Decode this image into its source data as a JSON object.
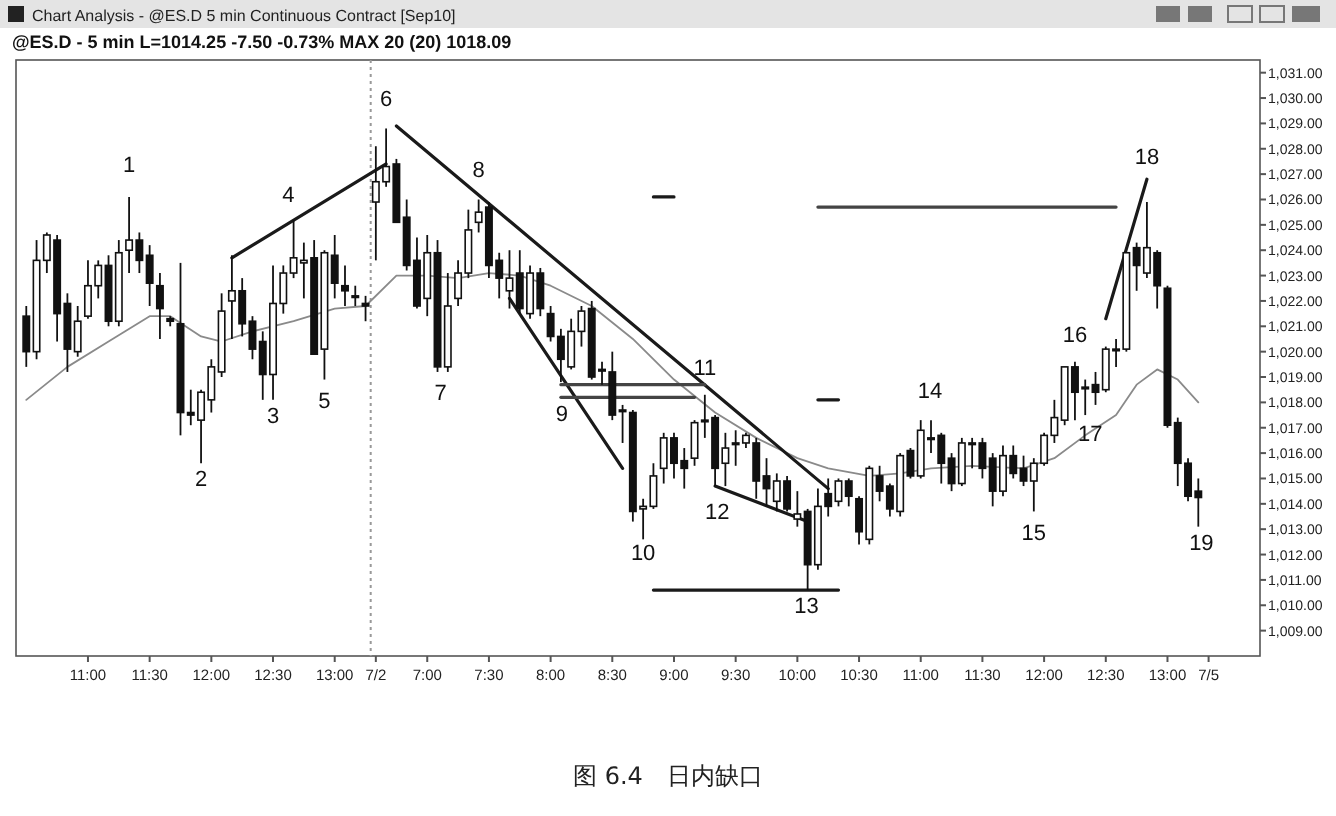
{
  "chart_data": {
    "type": "candlestick",
    "title": "Chart Analysis - @ES.D 5 min Continuous Contract [Sep10]",
    "subtitle": "@ES.D - 5 min  L=1014.25 -7.50 -0.73%  MAX 20 (20)  1018.09",
    "categories": [
      null,
      null,
      null,
      null,
      null,
      null,
      "11:00",
      null,
      null,
      null,
      null,
      null,
      "11:30",
      null,
      null,
      null,
      null,
      null,
      "12:00",
      null,
      null,
      null,
      null,
      null,
      "12:30",
      null,
      null,
      null,
      null,
      null,
      "13:00",
      null,
      null,
      null,
      "7/2",
      null,
      null,
      null,
      null,
      "7:00",
      null,
      null,
      null,
      null,
      null,
      "7:30",
      null,
      null,
      null,
      null,
      null,
      "8:00",
      null,
      null,
      null,
      null,
      null,
      "8:30",
      null,
      null,
      null,
      null,
      null,
      "9:00",
      null,
      null,
      null,
      null,
      null,
      "9:30",
      null,
      null,
      null,
      null,
      null,
      "10:00",
      null,
      null,
      null,
      null,
      null,
      "10:30",
      null,
      null,
      null,
      null,
      null,
      "11:00",
      null,
      null,
      null,
      null,
      null,
      "11:30",
      null,
      null,
      null,
      null,
      null,
      "12:00",
      null,
      null,
      null,
      null,
      null,
      "12:30",
      null,
      null,
      null,
      null,
      null,
      "13:00",
      null,
      null,
      null,
      "7/5"
    ],
    "ohlc": [
      [
        1021.4,
        1021.8,
        1019.4,
        1020.0
      ],
      [
        1020.0,
        1024.4,
        1019.7,
        1023.6
      ],
      [
        1023.6,
        1024.7,
        1023.1,
        1024.6
      ],
      [
        1024.4,
        1024.6,
        1020.4,
        1021.5
      ],
      [
        1021.9,
        1022.3,
        1019.2,
        1020.1
      ],
      [
        1020.0,
        1021.8,
        1019.8,
        1021.2
      ],
      [
        1021.4,
        1023.6,
        1021.3,
        1022.6
      ],
      [
        1022.6,
        1023.6,
        1022.1,
        1023.4
      ],
      [
        1023.4,
        1023.8,
        1021.0,
        1021.2
      ],
      [
        1021.2,
        1024.4,
        1021.0,
        1023.9
      ],
      [
        1024.0,
        1026.1,
        1023.1,
        1024.4
      ],
      [
        1024.4,
        1024.7,
        1023.1,
        1023.6
      ],
      [
        1023.8,
        1024.2,
        1021.8,
        1022.7
      ],
      [
        1022.6,
        1023.1,
        1020.5,
        1021.7
      ],
      [
        1021.3,
        1021.4,
        1021.0,
        1021.2
      ],
      [
        1021.1,
        1023.5,
        1016.7,
        1017.6
      ],
      [
        1017.6,
        1018.5,
        1017.1,
        1017.5
      ],
      [
        1017.3,
        1018.5,
        1015.6,
        1018.4
      ],
      [
        1018.1,
        1019.7,
        1017.6,
        1019.4
      ],
      [
        1019.2,
        1022.3,
        1019.0,
        1021.6
      ],
      [
        1022.0,
        1023.8,
        1020.5,
        1022.4
      ],
      [
        1022.4,
        1022.9,
        1020.6,
        1021.1
      ],
      [
        1021.2,
        1021.4,
        1019.7,
        1020.1
      ],
      [
        1020.4,
        1020.8,
        1018.1,
        1019.1
      ],
      [
        1019.1,
        1023.4,
        1018.1,
        1021.9
      ],
      [
        1021.9,
        1023.4,
        1021.5,
        1023.1
      ],
      [
        1023.1,
        1025.2,
        1022.9,
        1023.7
      ],
      [
        1023.5,
        1024.3,
        1022.1,
        1023.6
      ],
      [
        1023.7,
        1024.4,
        1019.9,
        1019.9
      ],
      [
        1020.1,
        1024.0,
        1018.9,
        1023.9
      ],
      [
        1023.8,
        1024.6,
        1022.1,
        1022.7
      ],
      [
        1022.6,
        1023.4,
        1021.8,
        1022.4
      ],
      [
        1022.2,
        1022.6,
        1021.8,
        1022.2
      ],
      [
        1021.9,
        1022.2,
        1021.2,
        1021.8
      ],
      [
        1025.9,
        1028.1,
        1023.6,
        1026.7
      ],
      [
        1026.7,
        1028.8,
        1026.5,
        1027.3
      ],
      [
        1027.4,
        1027.6,
        1025.1,
        1025.1
      ],
      [
        1025.3,
        1026.0,
        1023.2,
        1023.4
      ],
      [
        1023.6,
        1024.5,
        1021.7,
        1021.8
      ],
      [
        1022.1,
        1024.6,
        1021.4,
        1023.9
      ],
      [
        1023.9,
        1024.4,
        1019.2,
        1019.4
      ],
      [
        1019.4,
        1023.1,
        1019.2,
        1021.8
      ],
      [
        1022.1,
        1023.6,
        1021.8,
        1023.1
      ],
      [
        1023.1,
        1025.6,
        1022.9,
        1024.8
      ],
      [
        1025.1,
        1026.0,
        1024.7,
        1025.5
      ],
      [
        1025.7,
        1025.9,
        1022.9,
        1023.4
      ],
      [
        1023.6,
        1023.9,
        1022.1,
        1022.9
      ],
      [
        1022.4,
        1024.0,
        1021.7,
        1022.9
      ],
      [
        1023.1,
        1024.0,
        1021.5,
        1021.7
      ],
      [
        1021.5,
        1023.4,
        1021.3,
        1023.1
      ],
      [
        1023.1,
        1023.3,
        1021.4,
        1021.7
      ],
      [
        1021.5,
        1021.8,
        1020.4,
        1020.6
      ],
      [
        1020.6,
        1020.9,
        1018.8,
        1019.7
      ],
      [
        1019.4,
        1021.3,
        1019.3,
        1020.8
      ],
      [
        1020.8,
        1021.8,
        1020.2,
        1021.6
      ],
      [
        1021.7,
        1022.0,
        1018.9,
        1019.0
      ],
      [
        1019.3,
        1019.6,
        1018.7,
        1019.3
      ],
      [
        1019.2,
        1020.0,
        1017.3,
        1017.5
      ],
      [
        1017.7,
        1017.9,
        1016.4,
        1017.7
      ],
      [
        1017.6,
        1017.7,
        1013.3,
        1013.7
      ],
      [
        1013.8,
        1014.2,
        1012.6,
        1013.9
      ],
      [
        1013.9,
        1015.6,
        1013.8,
        1015.1
      ],
      [
        1015.4,
        1016.8,
        1014.8,
        1016.6
      ],
      [
        1016.6,
        1016.8,
        1015.0,
        1015.6
      ],
      [
        1015.7,
        1016.2,
        1014.6,
        1015.4
      ],
      [
        1015.8,
        1017.3,
        1015.5,
        1017.2
      ],
      [
        1017.3,
        1018.3,
        1016.6,
        1017.3
      ],
      [
        1017.4,
        1017.5,
        1014.7,
        1015.4
      ],
      [
        1015.6,
        1016.8,
        1014.7,
        1016.2
      ],
      [
        1016.4,
        1016.9,
        1015.5,
        1016.4
      ],
      [
        1016.4,
        1016.8,
        1016.2,
        1016.7
      ],
      [
        1016.4,
        1016.6,
        1014.2,
        1014.9
      ],
      [
        1015.1,
        1015.8,
        1013.9,
        1014.6
      ],
      [
        1014.1,
        1015.2,
        1013.7,
        1014.9
      ],
      [
        1014.9,
        1015.1,
        1013.7,
        1013.8
      ],
      [
        1013.4,
        1014.5,
        1013.1,
        1013.6
      ],
      [
        1013.7,
        1013.8,
        1010.6,
        1011.6
      ],
      [
        1011.6,
        1014.6,
        1011.4,
        1013.9
      ],
      [
        1014.4,
        1015.0,
        1013.5,
        1013.9
      ],
      [
        1014.1,
        1015.0,
        1013.9,
        1014.9
      ],
      [
        1014.9,
        1015.0,
        1013.9,
        1014.3
      ],
      [
        1014.2,
        1014.3,
        1012.4,
        1012.9
      ],
      [
        1012.6,
        1015.5,
        1012.4,
        1015.4
      ],
      [
        1015.1,
        1015.5,
        1014.1,
        1014.5
      ],
      [
        1014.7,
        1014.8,
        1013.5,
        1013.8
      ],
      [
        1013.7,
        1016.0,
        1013.5,
        1015.9
      ],
      [
        1016.1,
        1016.2,
        1015.0,
        1015.1
      ],
      [
        1015.1,
        1017.3,
        1015.0,
        1016.9
      ],
      [
        1016.6,
        1017.3,
        1016.0,
        1016.6
      ],
      [
        1016.7,
        1016.8,
        1014.8,
        1015.6
      ],
      [
        1015.8,
        1016.0,
        1014.5,
        1014.8
      ],
      [
        1014.8,
        1016.6,
        1014.7,
        1016.4
      ],
      [
        1016.4,
        1016.6,
        1015.4,
        1016.4
      ],
      [
        1016.4,
        1016.6,
        1015.0,
        1015.4
      ],
      [
        1015.8,
        1016.0,
        1013.9,
        1014.5
      ],
      [
        1014.5,
        1016.3,
        1014.3,
        1015.9
      ],
      [
        1015.9,
        1016.3,
        1015.0,
        1015.2
      ],
      [
        1015.4,
        1015.9,
        1014.7,
        1014.9
      ],
      [
        1014.9,
        1015.8,
        1013.7,
        1015.6
      ],
      [
        1015.6,
        1016.8,
        1015.5,
        1016.7
      ],
      [
        1016.7,
        1018.1,
        1016.4,
        1017.4
      ],
      [
        1017.3,
        1019.4,
        1017.1,
        1019.4
      ],
      [
        1019.4,
        1019.6,
        1017.3,
        1018.4
      ],
      [
        1018.6,
        1018.9,
        1017.5,
        1018.6
      ],
      [
        1018.7,
        1019.2,
        1017.9,
        1018.4
      ],
      [
        1018.5,
        1020.2,
        1018.4,
        1020.1
      ],
      [
        1020.1,
        1020.5,
        1019.4,
        1020.1
      ],
      [
        1020.1,
        1023.9,
        1020.0,
        1023.9
      ],
      [
        1024.1,
        1024.3,
        1022.4,
        1023.4
      ],
      [
        1023.1,
        1025.9,
        1022.9,
        1024.1
      ],
      [
        1023.9,
        1024.0,
        1021.7,
        1022.6
      ],
      [
        1022.5,
        1022.6,
        1017.0,
        1017.1
      ],
      [
        1017.2,
        1017.4,
        1014.7,
        1015.6
      ],
      [
        1015.6,
        1015.8,
        1014.1,
        1014.3
      ],
      [
        1014.5,
        1015.0,
        1013.1,
        1014.25
      ],
      null
    ],
    "series": [
      {
        "type": "line",
        "color": "#8a8a8a",
        "values": [
          1018.1,
          null,
          null,
          null,
          1019.4,
          null,
          null,
          null,
          1020.4,
          null,
          null,
          null,
          1021.4,
          null,
          1021.4,
          null,
          null,
          1020.6,
          null,
          1020.4,
          null,
          null,
          1020.8,
          null,
          null,
          null,
          1021.2,
          null,
          null,
          null,
          1021.7,
          null,
          null,
          1021.8,
          null,
          null,
          1023.0,
          null,
          null,
          1023.0,
          null,
          null,
          1022.9,
          null,
          null,
          1023.1,
          null,
          null,
          1023.0,
          null,
          null,
          1022.6,
          null,
          null,
          null,
          1021.8,
          null,
          null,
          null,
          1020.5,
          null,
          null,
          null,
          1018.9,
          null,
          null,
          null,
          1017.6,
          null,
          null,
          null,
          1016.6,
          null,
          null,
          null,
          1015.8,
          null,
          null,
          1015.4,
          null,
          null,
          null,
          1015.1,
          null,
          null,
          1015.2,
          null,
          null,
          1015.4,
          null,
          null,
          null,
          1015.5,
          null,
          null,
          null,
          null,
          1015.4,
          null,
          null,
          1015.8,
          null,
          null,
          1016.7,
          null,
          null,
          1017.5,
          null,
          1018.7,
          null,
          1019.3,
          null,
          1018.9,
          null,
          1018.0,
          null
        ]
      },
      {
        "type": "line",
        "color": "#1a1a1a",
        "values": [
          null,
          null,
          null,
          null,
          null,
          null,
          null,
          null,
          null,
          null,
          null,
          null,
          null,
          null,
          null,
          null,
          null,
          null,
          null,
          null,
          1023.7,
          null,
          null,
          null,
          null,
          null,
          null,
          null,
          null,
          null,
          null,
          null,
          null,
          null,
          null,
          1027.4,
          null,
          null,
          null,
          null,
          null,
          null,
          null,
          null,
          null,
          null,
          null,
          null,
          null,
          null,
          null,
          null,
          null,
          null,
          null,
          null,
          null,
          null,
          null,
          null,
          null,
          null,
          null,
          null,
          null,
          null,
          null,
          null,
          null,
          null,
          null,
          null,
          null,
          null,
          null,
          null,
          null,
          null,
          null,
          null,
          null,
          null,
          null,
          null,
          null,
          null,
          null,
          null,
          null,
          null,
          null,
          null,
          null,
          null,
          null,
          null,
          null,
          null,
          null,
          null,
          null,
          null,
          null,
          null,
          null,
          null,
          null,
          null,
          null,
          null,
          null,
          null,
          null,
          null,
          null,
          null
        ]
      },
      {
        "type": "line",
        "color": "#1a1a1a",
        "values": [
          null,
          null,
          null,
          null,
          null,
          null,
          null,
          null,
          null,
          null,
          null,
          null,
          null,
          null,
          null,
          null,
          null,
          null,
          null,
          null,
          null,
          null,
          null,
          null,
          null,
          null,
          null,
          null,
          null,
          null,
          null,
          null,
          null,
          null,
          null,
          null,
          1028.9,
          null,
          null,
          null,
          null,
          null,
          null,
          null,
          null,
          null,
          null,
          null,
          null,
          null,
          null,
          null,
          null,
          null,
          null,
          null,
          null,
          null,
          null,
          null,
          null,
          null,
          null,
          null,
          null,
          null,
          null,
          null,
          null,
          null,
          null,
          null,
          null,
          null,
          null,
          null,
          null,
          null,
          1014.6,
          null,
          null,
          null,
          null,
          null,
          null,
          null,
          null,
          null,
          null,
          null,
          null,
          null,
          null,
          null,
          null,
          null,
          null,
          null,
          null,
          null,
          null,
          null,
          null,
          null,
          null,
          null,
          null,
          null,
          null,
          null,
          null,
          null,
          null,
          null,
          null,
          null
        ]
      },
      {
        "type": "line",
        "color": "#1a1a1a",
        "values": [
          null,
          null,
          null,
          null,
          null,
          null,
          null,
          null,
          null,
          null,
          null,
          null,
          null,
          null,
          null,
          null,
          null,
          null,
          null,
          null,
          null,
          null,
          null,
          null,
          null,
          null,
          null,
          null,
          null,
          null,
          null,
          null,
          null,
          null,
          null,
          null,
          null,
          null,
          null,
          null,
          null,
          null,
          null,
          null,
          null,
          null,
          null,
          1022.1,
          null,
          null,
          null,
          null,
          null,
          null,
          null,
          null,
          null,
          null,
          1015.4,
          null,
          null,
          null,
          null,
          null,
          null,
          null,
          null,
          null,
          null,
          null,
          null,
          null,
          null,
          null,
          null,
          null,
          null,
          null,
          null,
          null,
          null,
          null,
          null,
          null,
          null,
          null,
          null,
          null,
          null,
          null,
          null,
          null,
          null,
          null,
          null,
          null,
          null,
          null,
          null,
          null,
          null,
          null,
          null,
          null,
          null,
          null,
          null,
          null,
          null,
          null,
          null,
          null,
          null,
          null,
          null,
          null
        ]
      },
      {
        "type": "line",
        "color": "#1a1a1a",
        "values": [
          null,
          null,
          null,
          null,
          null,
          null,
          null,
          null,
          null,
          null,
          null,
          null,
          null,
          null,
          null,
          null,
          null,
          null,
          null,
          null,
          null,
          null,
          null,
          null,
          null,
          null,
          null,
          null,
          null,
          null,
          null,
          null,
          null,
          null,
          null,
          null,
          null,
          null,
          null,
          null,
          null,
          null,
          null,
          null,
          null,
          null,
          null,
          null,
          null,
          null,
          null,
          null,
          null,
          null,
          null,
          null,
          null,
          null,
          null,
          null,
          null,
          null,
          null,
          null,
          null,
          null,
          null,
          1014.7,
          null,
          null,
          null,
          null,
          null,
          null,
          null,
          null,
          1013.3,
          null,
          null,
          null,
          null,
          null,
          null,
          null,
          null,
          null,
          null,
          null,
          null,
          null,
          null,
          null,
          null,
          null,
          null,
          null,
          null,
          null,
          null,
          null,
          null,
          null,
          null,
          null,
          null,
          null,
          null,
          null,
          null,
          null,
          null,
          null,
          null,
          null,
          null,
          null
        ]
      },
      {
        "type": "line",
        "color": "#1a1a1a",
        "values": [
          null,
          null,
          null,
          null,
          null,
          null,
          null,
          null,
          null,
          null,
          null,
          null,
          null,
          null,
          null,
          null,
          null,
          null,
          null,
          null,
          null,
          null,
          null,
          null,
          null,
          null,
          null,
          null,
          null,
          null,
          null,
          null,
          null,
          null,
          null,
          null,
          null,
          null,
          null,
          null,
          null,
          null,
          null,
          null,
          null,
          null,
          null,
          null,
          null,
          null,
          null,
          null,
          null,
          null,
          null,
          null,
          null,
          null,
          null,
          null,
          null,
          null,
          null,
          null,
          null,
          null,
          null,
          null,
          null,
          null,
          null,
          null,
          null,
          null,
          null,
          null,
          null,
          null,
          null,
          null,
          null,
          null,
          null,
          null,
          null,
          null,
          null,
          null,
          null,
          null,
          null,
          null,
          null,
          null,
          null,
          null,
          null,
          null,
          null,
          null,
          null,
          null,
          null,
          null,
          null,
          1021.3,
          null,
          null,
          null,
          1026.8,
          null,
          null,
          null,
          null,
          null,
          null
        ]
      },
      {
        "type": "line",
        "color": "#444444",
        "values": [
          null,
          null,
          null,
          null,
          null,
          null,
          null,
          null,
          null,
          null,
          null,
          null,
          null,
          null,
          null,
          null,
          null,
          null,
          null,
          null,
          null,
          null,
          null,
          null,
          null,
          null,
          null,
          null,
          null,
          null,
          null,
          null,
          null,
          null,
          null,
          null,
          null,
          null,
          null,
          null,
          null,
          null,
          null,
          null,
          null,
          null,
          null,
          null,
          null,
          null,
          null,
          null,
          1018.7,
          null,
          null,
          null,
          null,
          null,
          null,
          null,
          null,
          null,
          null,
          null,
          null,
          null,
          1018.7,
          null,
          null,
          null,
          null,
          null,
          null,
          null,
          null,
          null,
          null,
          null,
          null,
          null,
          null,
          null,
          null,
          null,
          null,
          null,
          null,
          null,
          null,
          null,
          null,
          null,
          null,
          null,
          null,
          null,
          null,
          null,
          null,
          null,
          null,
          null,
          null,
          null,
          null,
          null,
          null,
          null,
          null,
          null,
          null,
          null,
          null,
          null,
          null,
          null
        ]
      },
      {
        "type": "line",
        "color": "#444444",
        "values": [
          null,
          null,
          null,
          null,
          null,
          null,
          null,
          null,
          null,
          null,
          null,
          null,
          null,
          null,
          null,
          null,
          null,
          null,
          null,
          null,
          null,
          null,
          null,
          null,
          null,
          null,
          null,
          null,
          null,
          null,
          null,
          null,
          null,
          null,
          null,
          null,
          null,
          null,
          null,
          null,
          null,
          null,
          null,
          null,
          null,
          null,
          null,
          null,
          null,
          null,
          null,
          null,
          1018.2,
          null,
          null,
          null,
          null,
          null,
          null,
          null,
          null,
          null,
          null,
          null,
          null,
          1018.2,
          null,
          null,
          null,
          null,
          null,
          null,
          null,
          null,
          null,
          null,
          null,
          null,
          null,
          null,
          null,
          null,
          null,
          null,
          null,
          null,
          null,
          null,
          null,
          null,
          null,
          null,
          null,
          null,
          null,
          null,
          null,
          null,
          null,
          null,
          null,
          null,
          null,
          null,
          null,
          null,
          null,
          null,
          null,
          null,
          null,
          null,
          null,
          null,
          null,
          null
        ]
      },
      {
        "type": "line",
        "color": "#1a1a1a",
        "values": [
          null,
          null,
          null,
          null,
          null,
          null,
          null,
          null,
          null,
          null,
          null,
          null,
          null,
          null,
          null,
          null,
          null,
          null,
          null,
          null,
          null,
          null,
          null,
          null,
          null,
          null,
          null,
          null,
          null,
          null,
          null,
          null,
          null,
          null,
          null,
          null,
          null,
          null,
          null,
          null,
          null,
          null,
          null,
          null,
          null,
          null,
          null,
          null,
          null,
          null,
          null,
          null,
          null,
          null,
          null,
          null,
          null,
          null,
          null,
          null,
          null,
          1026.1,
          null,
          1026.1,
          null,
          null,
          null,
          null,
          null,
          null,
          null,
          null,
          null,
          null,
          null,
          null,
          null,
          null,
          null,
          null,
          null,
          null,
          null,
          null,
          null,
          null,
          null,
          null,
          null,
          null,
          null,
          null,
          null,
          null,
          null,
          null,
          null,
          null,
          null,
          null,
          null,
          null,
          null,
          null,
          null,
          null,
          null,
          null,
          null,
          null,
          null,
          null,
          null,
          null,
          null,
          null
        ]
      },
      {
        "type": "line",
        "color": "#444444",
        "values": [
          null,
          null,
          null,
          null,
          null,
          null,
          null,
          null,
          null,
          null,
          null,
          null,
          null,
          null,
          null,
          null,
          null,
          null,
          null,
          null,
          null,
          null,
          null,
          null,
          null,
          null,
          null,
          null,
          null,
          null,
          null,
          null,
          null,
          null,
          null,
          null,
          null,
          null,
          null,
          null,
          null,
          null,
          null,
          null,
          null,
          null,
          null,
          null,
          null,
          null,
          null,
          null,
          null,
          null,
          null,
          null,
          null,
          null,
          null,
          null,
          null,
          null,
          null,
          null,
          null,
          null,
          null,
          null,
          null,
          null,
          null,
          null,
          null,
          null,
          null,
          null,
          null,
          1025.7,
          null,
          null,
          null,
          null,
          null,
          null,
          null,
          null,
          null,
          null,
          null,
          null,
          null,
          null,
          null,
          null,
          null,
          null,
          null,
          null,
          null,
          null,
          null,
          null,
          null,
          null,
          null,
          null,
          1025.7,
          null,
          null,
          null,
          null,
          null,
          null,
          null,
          null,
          null
        ]
      },
      {
        "type": "line",
        "color": "#1a1a1a",
        "values": [
          null,
          null,
          null,
          null,
          null,
          null,
          null,
          null,
          null,
          null,
          null,
          null,
          null,
          null,
          null,
          null,
          null,
          null,
          null,
          null,
          null,
          null,
          null,
          null,
          null,
          null,
          null,
          null,
          null,
          null,
          null,
          null,
          null,
          null,
          null,
          null,
          null,
          null,
          null,
          null,
          null,
          null,
          null,
          null,
          null,
          null,
          null,
          null,
          null,
          null,
          null,
          null,
          null,
          null,
          null,
          null,
          null,
          null,
          null,
          null,
          null,
          null,
          null,
          null,
          null,
          null,
          null,
          null,
          null,
          null,
          null,
          null,
          null,
          null,
          null,
          null,
          null,
          1018.1,
          null,
          1018.1,
          null,
          null,
          null,
          null,
          null,
          null,
          null,
          null,
          null,
          null,
          null,
          null,
          null,
          null,
          null,
          null,
          null,
          null,
          null,
          null,
          null,
          null,
          null,
          null,
          null,
          null,
          null,
          null,
          null,
          null,
          null,
          null,
          null,
          null,
          null,
          null
        ]
      },
      {
        "type": "line",
        "color": "#1a1a1a",
        "values": [
          null,
          null,
          null,
          null,
          null,
          null,
          null,
          null,
          null,
          null,
          null,
          null,
          null,
          null,
          null,
          null,
          null,
          null,
          null,
          null,
          null,
          null,
          null,
          null,
          null,
          null,
          null,
          null,
          null,
          null,
          null,
          null,
          null,
          null,
          null,
          null,
          null,
          null,
          null,
          null,
          null,
          null,
          null,
          null,
          null,
          null,
          null,
          null,
          null,
          null,
          null,
          null,
          null,
          null,
          null,
          null,
          null,
          null,
          null,
          null,
          null,
          1010.6,
          null,
          null,
          null,
          null,
          null,
          null,
          null,
          null,
          null,
          null,
          null,
          null,
          null,
          null,
          null,
          null,
          null,
          1010.6,
          null,
          null,
          null,
          null,
          null,
          null,
          null,
          null,
          null,
          null,
          null,
          null,
          null,
          null,
          null,
          null,
          null,
          null,
          null,
          null,
          null,
          null,
          null,
          null,
          null,
          null,
          null,
          null,
          null,
          null,
          null,
          null,
          null,
          null,
          null,
          null
        ]
      }
    ],
    "ylim": [
      1008,
      1031.5
    ],
    "yticks": [
      {
        "value": 1009,
        "label": "1,009.00"
      },
      {
        "value": 1010,
        "label": "1,010.00"
      },
      {
        "value": 1011,
        "label": "1,011.00"
      },
      {
        "value": 1012,
        "label": "1,012.00"
      },
      {
        "value": 1013,
        "label": "1,013.00"
      },
      {
        "value": 1014,
        "label": "1,014.00"
      },
      {
        "value": 1015,
        "label": "1,015.00"
      },
      {
        "value": 1016,
        "label": "1,016.00"
      },
      {
        "value": 1017,
        "label": "1,017.00"
      },
      {
        "value": 1018,
        "label": "1,018.00"
      },
      {
        "value": 1019,
        "label": "1,019.00"
      },
      {
        "value": 1020,
        "label": "1,020.00"
      },
      {
        "value": 1021,
        "label": "1,021.00"
      },
      {
        "value": 1022,
        "label": "1,022.00"
      },
      {
        "value": 1023,
        "label": "1,023.00"
      },
      {
        "value": 1024,
        "label": "1,024.00"
      },
      {
        "value": 1025,
        "label": "1,025.00"
      },
      {
        "value": 1026,
        "label": "1,026.00"
      },
      {
        "value": 1027,
        "label": "1,027.00"
      },
      {
        "value": 1028,
        "label": "1,028.00"
      },
      {
        "value": 1029,
        "label": "1,029.00"
      },
      {
        "value": 1030,
        "label": "1,030.00"
      },
      {
        "value": 1031,
        "label": "1,031.00"
      }
    ],
    "annotations": [
      "1",
      "2",
      "3",
      "4",
      "5",
      "6",
      "7",
      "8",
      "9",
      "10",
      "11",
      "12",
      "13",
      "14",
      "15",
      "16",
      "17",
      "18",
      "19",
      "图 6.4　日内缺口"
    ],
    "grid": false
  }
}
